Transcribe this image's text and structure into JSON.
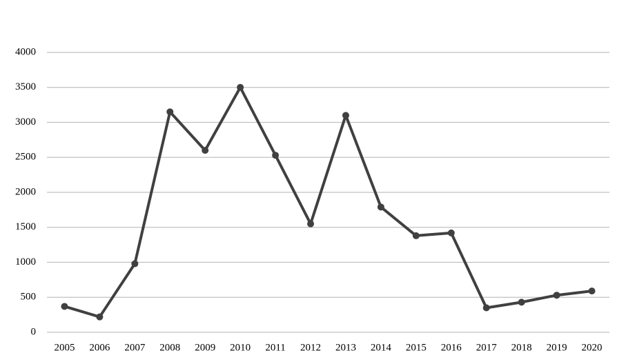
{
  "chart_data": {
    "type": "line",
    "categories": [
      "2005",
      "2006",
      "2007",
      "2008",
      "2009",
      "2010",
      "2011",
      "2012",
      "2013",
      "2014",
      "2015",
      "2016",
      "2017",
      "2018",
      "2019",
      "2020"
    ],
    "values": [
      370,
      220,
      980,
      3150,
      2600,
      3500,
      2530,
      1550,
      3100,
      1790,
      1380,
      1420,
      350,
      430,
      530,
      590
    ],
    "color": "#404040",
    "ylim": [
      0,
      4000
    ],
    "yticks": [
      0,
      500,
      1000,
      1500,
      2000,
      2500,
      3000,
      3500,
      4000
    ],
    "grid": true
  }
}
